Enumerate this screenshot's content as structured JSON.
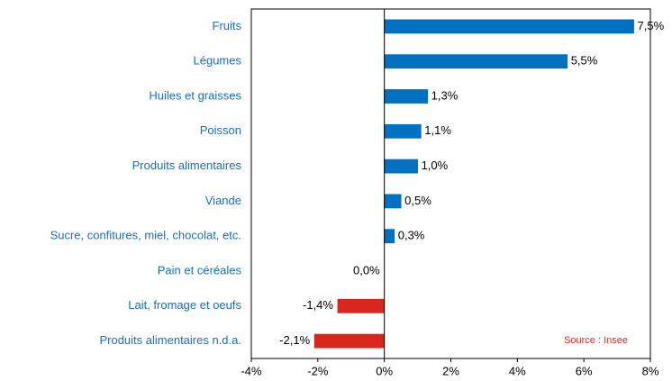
{
  "chart_data": {
    "type": "barh",
    "categories": [
      "Fruits",
      "Légumes",
      "Huiles et graisses",
      "Poisson",
      "Produits alimentaires",
      "Viande",
      "Sucre, confitures, miel, chocolat, etc.",
      "Pain et céréales",
      "Lait, fromage et oeufs",
      "Produits alimentaires n.d.a."
    ],
    "values": [
      7.5,
      5.5,
      1.3,
      1.1,
      1.0,
      0.5,
      0.3,
      0.0,
      -1.4,
      -2.1
    ],
    "value_labels": [
      "7,5%",
      "5,5%",
      "1,3%",
      "1,1%",
      "1,0%",
      "0,5%",
      "0,3%",
      "0,0%",
      "-1,4%",
      "-2,1%"
    ],
    "color": "#0070c0",
    "negative_color": "#d9261c",
    "xlim": [
      -4,
      8
    ],
    "xticks": [
      {
        "value": -4,
        "label": "-4%"
      },
      {
        "value": -2,
        "label": "-2%"
      },
      {
        "value": 0,
        "label": "0%"
      },
      {
        "value": 2,
        "label": "2%"
      },
      {
        "value": 4,
        "label": "4%"
      },
      {
        "value": 6,
        "label": "6%"
      },
      {
        "value": 8,
        "label": "8%"
      }
    ],
    "annotation": "Source : Insee"
  }
}
